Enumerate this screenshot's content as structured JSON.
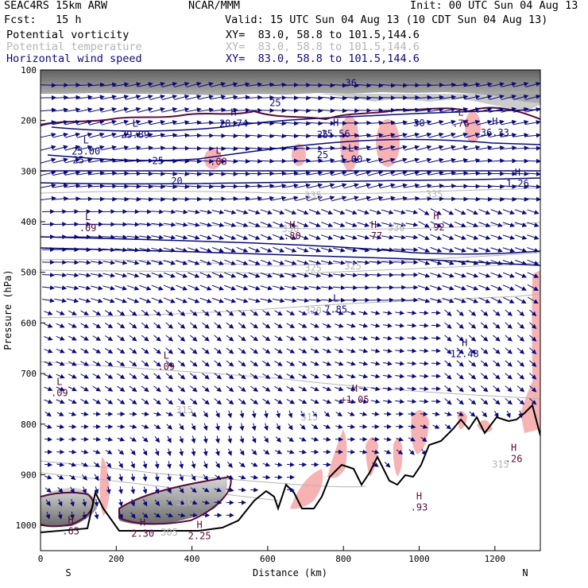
{
  "header": {
    "model": "SEAC4RS 15km ARW",
    "center": "NCAR/MMM",
    "init": "Init: 00 UTC Sun 04 Aug 13",
    "fcst": "Fcst:   15 h",
    "valid": "Valid: 15 UTC Sun 04 Aug 13 (10 CDT Sun 04 Aug 13)",
    "fields": [
      {
        "name": "Potential vorticity",
        "xy": "XY=  83.0, 58.8 to 101.5,144.6",
        "color": "#5a0a3c"
      },
      {
        "name": "Potential temperature",
        "xy": "XY=  83.0, 58.8 to 101.5,144.6",
        "color": "#b4b4b4"
      },
      {
        "name": "Horizontal wind speed",
        "xy": "XY=  83.0, 58.8 to 101.5,144.6",
        "color": "#0a0a78"
      }
    ]
  },
  "chart_data": {
    "type": "cross-section",
    "xlabel": "Distance (km)",
    "ylabel": "Pressure (hPa)",
    "xlim": [
      0,
      1320
    ],
    "ylim": [
      1050,
      100
    ],
    "xticks": [
      "0",
      "200",
      "400",
      "600",
      "800",
      "1000",
      "1200"
    ],
    "yticks": [
      "100",
      "200",
      "300",
      "400",
      "500",
      "600",
      "700",
      "800",
      "900",
      "1000"
    ],
    "x_end_labels": {
      "left": "S",
      "right": "N"
    },
    "wind_speed_contours": [
      {
        "label": "20",
        "x": 360,
        "p": 320
      },
      {
        "label": "25",
        "x": 100,
        "p": 278
      },
      {
        "label": "25",
        "x": 310,
        "p": 280
      },
      {
        "label": "25",
        "x": 745,
        "p": 268
      },
      {
        "label": "25",
        "x": 620,
        "p": 165
      },
      {
        "label": "25",
        "x": 745,
        "p": 228
      },
      {
        "label": "30",
        "x": 1000,
        "p": 205
      },
      {
        "label": "36",
        "x": 820,
        "p": 126
      }
    ],
    "theta_contours": [
      {
        "label": "335",
        "x": 720,
        "p": 348
      },
      {
        "label": "335",
        "x": 1040,
        "p": 346
      },
      {
        "label": "330",
        "x": 660,
        "p": 414
      },
      {
        "label": "330",
        "x": 940,
        "p": 412
      },
      {
        "label": "325",
        "x": 720,
        "p": 492
      },
      {
        "label": "325",
        "x": 825,
        "p": 488
      },
      {
        "label": "320",
        "x": 720,
        "p": 576
      },
      {
        "label": "315",
        "x": 380,
        "p": 772
      },
      {
        "label": "315",
        "x": 710,
        "p": 786
      },
      {
        "label": "310",
        "x": 380,
        "p": 954
      },
      {
        "label": "305",
        "x": 340,
        "p": 1014
      },
      {
        "label": "315",
        "x": 1215,
        "p": 880
      }
    ],
    "extrema": [
      {
        "type": "L",
        "value": "25.00",
        "x": 120,
        "p": 255
      },
      {
        "type": "L",
        "value": ".09",
        "x": 125,
        "p": 406
      },
      {
        "type": "L",
        "value": ".09",
        "x": 50,
        "p": 732
      },
      {
        "type": "L",
        "value": ".09",
        "x": 332,
        "p": 680
      },
      {
        "type": "L",
        "value": ".08",
        "x": 470,
        "p": 275
      },
      {
        "type": "L",
        "value": "7.85",
        "x": 780,
        "p": 567
      },
      {
        "type": "L",
        "value": "29.89",
        "x": 250,
        "p": 222
      },
      {
        "type": "H",
        "value": "28.74",
        "x": 510,
        "p": 200
      },
      {
        "type": "H",
        "value": "25.56",
        "x": 780,
        "p": 220
      },
      {
        "type": "L",
        "value": "1.00",
        "x": 820,
        "p": 270
      },
      {
        "type": "H",
        "value": "36.33",
        "x": 1200,
        "p": 218
      },
      {
        "type": "H",
        "value": "1.26",
        "x": 1260,
        "p": 318
      },
      {
        "type": "H",
        "value": ".80",
        "x": 665,
        "p": 422
      },
      {
        "type": "H",
        "value": ".77",
        "x": 880,
        "p": 422
      },
      {
        "type": "H",
        "value": ".92",
        "x": 1045,
        "p": 405
      },
      {
        "type": "H",
        "value": "12.48",
        "x": 1120,
        "p": 655
      },
      {
        "type": "H",
        "value": "+1.05",
        "x": 830,
        "p": 745
      },
      {
        "type": "H",
        "value": ".26",
        "x": 1250,
        "p": 862
      },
      {
        "type": "H",
        "value": ".93",
        "x": 1000,
        "p": 958
      },
      {
        "type": "H",
        "value": ".65",
        "x": 80,
        "p": 1005
      },
      {
        "type": "H",
        "value": "2.30",
        "x": 270,
        "p": 1010
      },
      {
        "type": "H",
        "value": "2.25",
        "x": 420,
        "p": 1015
      },
      {
        "type": "L",
        "value": ".76",
        "x": 1110,
        "p": 200
      }
    ]
  }
}
